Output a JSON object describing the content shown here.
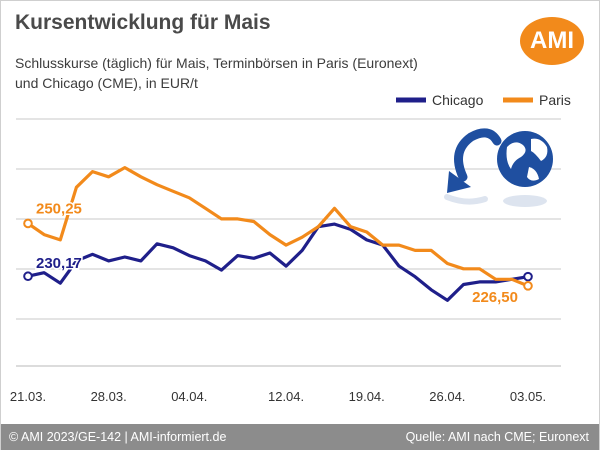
{
  "header": {
    "title": "Kursentwicklung für Mais",
    "subtitle_line1": "Schlusskurse (täglich) für Mais, Terminbörsen in Paris (Euronext)",
    "subtitle_line2": "und Chicago (CME), in EUR/t",
    "logo_text": "AMI"
  },
  "footer": {
    "left": "© AMI 2023/GE-142 | AMI-informiert.de",
    "right": "Quelle: AMI nach CME; Euronext"
  },
  "colors": {
    "chicago": "#1f1f8a",
    "paris": "#f28a1b",
    "grid": "#c8c8c8",
    "background": "#ffffff"
  },
  "icons": [
    "chart-arrow-icon",
    "globe-icon"
  ],
  "chart_data": {
    "type": "line",
    "x_ticks": [
      "21.03.",
      "28.03.",
      "04.04.",
      "12.04.",
      "19.04.",
      "26.04.",
      "03.05."
    ],
    "x": [
      "21.03.",
      "22.03.",
      "23.03.",
      "24.03.",
      "27.03.",
      "28.03.",
      "29.03.",
      "30.03.",
      "31.03.",
      "03.04.",
      "04.04.",
      "05.04.",
      "06.04.",
      "07.04.",
      "10.04.",
      "11.04.",
      "12.04.",
      "13.04.",
      "14.04.",
      "17.04.",
      "18.04.",
      "19.04.",
      "20.04.",
      "21.04.",
      "24.04.",
      "25.04.",
      "26.04.",
      "27.04.",
      "28.04.",
      "01.05.",
      "02.05.",
      "03.05."
    ],
    "series": [
      {
        "name": "Chicago",
        "color": "#1f1f8a",
        "values": [
          230.17,
          231.5,
          227.5,
          236.0,
          238.5,
          236.0,
          237.5,
          236.0,
          242.5,
          241.0,
          238.0,
          236.0,
          232.5,
          238.0,
          237.0,
          239.0,
          234.0,
          240.0,
          249.0,
          250.0,
          248.0,
          244.0,
          242.0,
          234.0,
          230.0,
          225.0,
          221.0,
          227.0,
          228.0,
          228.0,
          229.0,
          230.0
        ]
      },
      {
        "name": "Paris",
        "color": "#f28a1b",
        "values": [
          250.25,
          246.0,
          244.0,
          264.0,
          270.0,
          268.0,
          271.5,
          268.0,
          265.0,
          262.5,
          260.0,
          256.0,
          252.0,
          252.0,
          251.0,
          246.0,
          242.0,
          245.0,
          249.0,
          256.0,
          249.0,
          247.0,
          242.0,
          242.0,
          240.0,
          240.0,
          235.0,
          233.0,
          233.0,
          229.0,
          229.0,
          226.5
        ]
      }
    ],
    "data_labels": [
      {
        "series": "Paris",
        "text": "250,25"
      },
      {
        "series": "Chicago",
        "text": "230,17"
      },
      {
        "series": "Paris",
        "text": "226,50"
      }
    ],
    "xlabel": "",
    "ylabel": "",
    "ylim": [
      196,
      290
    ],
    "grid": true,
    "legend_position": "top-right"
  }
}
